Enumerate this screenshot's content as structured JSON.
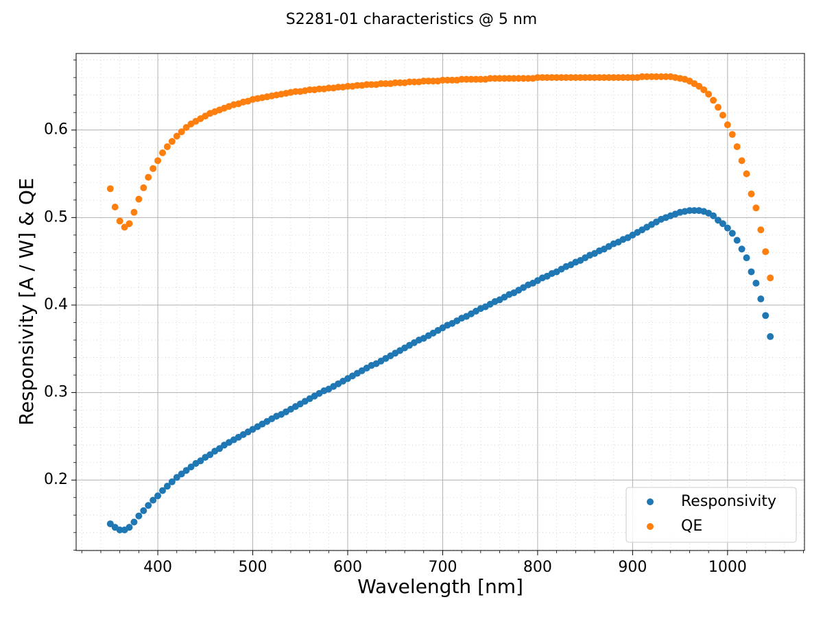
{
  "chart_data": {
    "type": "scatter",
    "title": "S2281-01 characteristics @ 5 nm",
    "x_label": "Wavelength [nm]",
    "y_label": "Responsivity [A / W] & QE",
    "x": [
      350,
      355,
      360,
      365,
      370,
      375,
      380,
      385,
      390,
      395,
      400,
      405,
      410,
      415,
      420,
      425,
      430,
      435,
      440,
      445,
      450,
      455,
      460,
      465,
      470,
      475,
      480,
      485,
      490,
      495,
      500,
      505,
      510,
      515,
      520,
      525,
      530,
      535,
      540,
      545,
      550,
      555,
      560,
      565,
      570,
      575,
      580,
      585,
      590,
      595,
      600,
      605,
      610,
      615,
      620,
      625,
      630,
      635,
      640,
      645,
      650,
      655,
      660,
      665,
      670,
      675,
      680,
      685,
      690,
      695,
      700,
      705,
      710,
      715,
      720,
      725,
      730,
      735,
      740,
      745,
      750,
      755,
      760,
      765,
      770,
      775,
      780,
      785,
      790,
      795,
      800,
      805,
      810,
      815,
      820,
      825,
      830,
      835,
      840,
      845,
      850,
      855,
      860,
      865,
      870,
      875,
      880,
      885,
      890,
      895,
      900,
      905,
      910,
      915,
      920,
      925,
      930,
      935,
      940,
      945,
      950,
      955,
      960,
      965,
      970,
      975,
      980,
      985,
      990,
      995,
      1000,
      1005,
      1010,
      1015,
      1020,
      1025,
      1030,
      1035,
      1040,
      1045
    ],
    "series": [
      {
        "name": "Responsivity",
        "color": "#1f77b4",
        "values": [
          0.15,
          0.146,
          0.143,
          0.143,
          0.146,
          0.152,
          0.159,
          0.165,
          0.171,
          0.177,
          0.182,
          0.188,
          0.193,
          0.198,
          0.203,
          0.207,
          0.211,
          0.215,
          0.219,
          0.222,
          0.226,
          0.229,
          0.233,
          0.236,
          0.24,
          0.243,
          0.246,
          0.249,
          0.252,
          0.255,
          0.258,
          0.261,
          0.264,
          0.267,
          0.27,
          0.273,
          0.275,
          0.278,
          0.281,
          0.284,
          0.287,
          0.29,
          0.293,
          0.296,
          0.299,
          0.302,
          0.304,
          0.307,
          0.31,
          0.313,
          0.316,
          0.319,
          0.322,
          0.325,
          0.328,
          0.331,
          0.333,
          0.336,
          0.339,
          0.342,
          0.345,
          0.348,
          0.351,
          0.354,
          0.357,
          0.36,
          0.362,
          0.365,
          0.368,
          0.371,
          0.374,
          0.377,
          0.379,
          0.382,
          0.385,
          0.387,
          0.39,
          0.393,
          0.396,
          0.398,
          0.401,
          0.404,
          0.406,
          0.409,
          0.412,
          0.414,
          0.417,
          0.42,
          0.423,
          0.425,
          0.428,
          0.431,
          0.433,
          0.436,
          0.438,
          0.441,
          0.444,
          0.446,
          0.449,
          0.451,
          0.454,
          0.457,
          0.459,
          0.462,
          0.464,
          0.467,
          0.47,
          0.472,
          0.475,
          0.477,
          0.48,
          0.483,
          0.486,
          0.489,
          0.492,
          0.495,
          0.498,
          0.5,
          0.502,
          0.504,
          0.506,
          0.507,
          0.508,
          0.508,
          0.508,
          0.507,
          0.505,
          0.502,
          0.497,
          0.493,
          0.488,
          0.482,
          0.474,
          0.464,
          0.454,
          0.438,
          0.425,
          0.407,
          0.388,
          0.364
        ]
      },
      {
        "name": "QE",
        "color": "#ff7f0e",
        "values": [
          0.533,
          0.512,
          0.496,
          0.489,
          0.493,
          0.506,
          0.521,
          0.534,
          0.546,
          0.556,
          0.565,
          0.574,
          0.581,
          0.587,
          0.593,
          0.598,
          0.603,
          0.607,
          0.61,
          0.613,
          0.616,
          0.619,
          0.621,
          0.623,
          0.625,
          0.627,
          0.629,
          0.63,
          0.632,
          0.633,
          0.635,
          0.636,
          0.637,
          0.638,
          0.639,
          0.64,
          0.641,
          0.642,
          0.643,
          0.644,
          0.644,
          0.645,
          0.646,
          0.646,
          0.647,
          0.647,
          0.648,
          0.648,
          0.649,
          0.649,
          0.65,
          0.65,
          0.651,
          0.651,
          0.652,
          0.652,
          0.652,
          0.653,
          0.653,
          0.653,
          0.654,
          0.654,
          0.654,
          0.655,
          0.655,
          0.655,
          0.656,
          0.656,
          0.656,
          0.656,
          0.657,
          0.657,
          0.657,
          0.657,
          0.658,
          0.658,
          0.658,
          0.658,
          0.658,
          0.658,
          0.659,
          0.659,
          0.659,
          0.659,
          0.659,
          0.659,
          0.659,
          0.659,
          0.659,
          0.659,
          0.66,
          0.66,
          0.66,
          0.66,
          0.66,
          0.66,
          0.66,
          0.66,
          0.66,
          0.66,
          0.66,
          0.66,
          0.66,
          0.66,
          0.66,
          0.66,
          0.66,
          0.66,
          0.66,
          0.66,
          0.66,
          0.66,
          0.661,
          0.661,
          0.661,
          0.661,
          0.661,
          0.661,
          0.661,
          0.66,
          0.659,
          0.658,
          0.656,
          0.653,
          0.65,
          0.646,
          0.641,
          0.634,
          0.626,
          0.617,
          0.606,
          0.595,
          0.581,
          0.565,
          0.55,
          0.527,
          0.511,
          0.486,
          0.461,
          0.431
        ]
      }
    ],
    "xlim": [
      314,
      1081
    ],
    "ylim": [
      0.1195,
      0.6875
    ],
    "xticks": [
      400,
      500,
      600,
      700,
      800,
      900,
      1000
    ],
    "yticks": [
      0.2,
      0.3,
      0.4,
      0.5,
      0.6
    ],
    "xminorticks": [
      320,
      340,
      360,
      380,
      420,
      440,
      460,
      480,
      520,
      540,
      560,
      580,
      620,
      640,
      660,
      680,
      720,
      740,
      760,
      780,
      820,
      840,
      860,
      880,
      920,
      940,
      960,
      980,
      1020,
      1040,
      1060,
      1080
    ],
    "yminorticks": [
      0.12,
      0.14,
      0.16,
      0.18,
      0.22,
      0.24,
      0.26,
      0.28,
      0.32,
      0.34,
      0.36,
      0.38,
      0.42,
      0.44,
      0.46,
      0.48,
      0.52,
      0.54,
      0.56,
      0.58,
      0.62,
      0.64,
      0.66,
      0.68
    ],
    "grid": true,
    "minor_grid": true,
    "legend": "lower right"
  }
}
